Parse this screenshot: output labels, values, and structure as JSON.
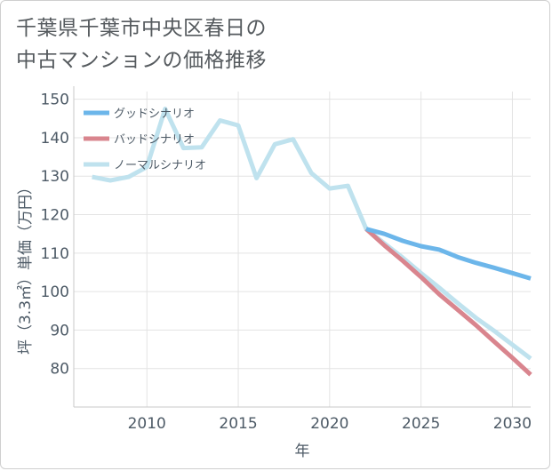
{
  "title": "千葉県千葉市中央区春日の\n中古マンションの価格推移",
  "chart_data": {
    "type": "line",
    "xlabel": "年",
    "ylabel": "坪（3.3㎡）単価（万円）",
    "xlim": [
      2006,
      2031
    ],
    "ylim": [
      70,
      152
    ],
    "xticks": [
      2010,
      2015,
      2020,
      2025,
      2030
    ],
    "yticks": [
      80,
      90,
      100,
      110,
      120,
      130,
      140,
      150
    ],
    "legend_position": "top-left",
    "series": [
      {
        "name": "グッドシナリオ",
        "color": "#6cb6ea",
        "x": [
          2022,
          2023,
          2024,
          2025,
          2026,
          2027,
          2028,
          2029,
          2030,
          2031
        ],
        "y": [
          116.3,
          115.0,
          113.2,
          111.8,
          110.9,
          109.0,
          107.5,
          106.2,
          104.8,
          103.4
        ]
      },
      {
        "name": "バッドシナリオ",
        "color": "#d9858e",
        "x": [
          2022,
          2023,
          2024,
          2025,
          2026,
          2027,
          2028,
          2029,
          2030,
          2031
        ],
        "y": [
          116.3,
          112.0,
          108.0,
          103.8,
          99.3,
          95.3,
          91.3,
          87.0,
          82.8,
          78.4
        ]
      },
      {
        "name": "ノーマルシナリオ",
        "color": "#bfe2ee",
        "x": [
          2007,
          2008,
          2009,
          2010,
          2011,
          2012,
          2013,
          2014,
          2015,
          2016,
          2017,
          2018,
          2019,
          2020,
          2021,
          2022,
          2023,
          2024,
          2025,
          2026,
          2027,
          2028,
          2029,
          2030,
          2031
        ],
        "y": [
          129.8,
          128.9,
          129.8,
          132.4,
          147.5,
          137.3,
          137.5,
          144.5,
          143.2,
          129.5,
          138.3,
          139.6,
          130.8,
          126.8,
          127.5,
          116.3,
          112.5,
          108.8,
          104.8,
          101.0,
          97.0,
          93.2,
          89.8,
          86.2,
          82.6
        ]
      }
    ]
  }
}
